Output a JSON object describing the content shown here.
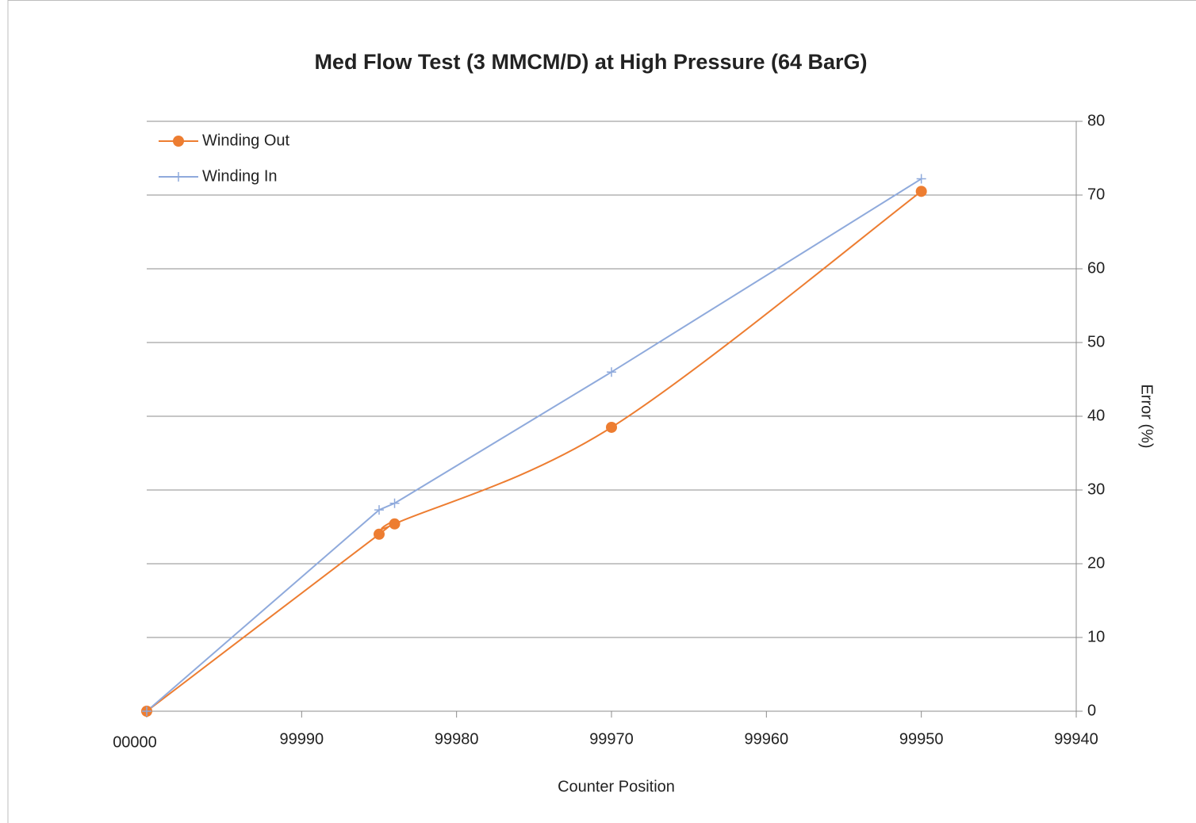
{
  "chart_data": {
    "type": "line",
    "title": "Med Flow Test (3 MMCM/D) at High Pressure (64 BarG)",
    "xlabel": "Counter Position",
    "ylabel": "Error (%)",
    "x": [
      100000,
      99985,
      99984,
      99970,
      99950
    ],
    "series": [
      {
        "name": "Winding Out",
        "color": "#ed7d31",
        "marker": "circle",
        "smooth": true,
        "values": [
          0,
          24,
          25.4,
          38.5,
          70.5
        ]
      },
      {
        "name": "Winding In",
        "color": "#8faadc",
        "marker": "plus",
        "smooth": false,
        "values": [
          0,
          27.3,
          28.2,
          46,
          72.2
        ]
      }
    ],
    "xlim": [
      100000,
      99940
    ],
    "xticks": [
      {
        "value": 100000,
        "label": "00000"
      },
      99990,
      99980,
      99970,
      99960,
      99950,
      99940
    ],
    "ylim": [
      0,
      80
    ],
    "yticks": [
      0,
      10,
      20,
      30,
      40,
      50,
      60,
      70,
      80
    ],
    "y_axis_side": "right",
    "grid": true,
    "legend": "top-left"
  }
}
